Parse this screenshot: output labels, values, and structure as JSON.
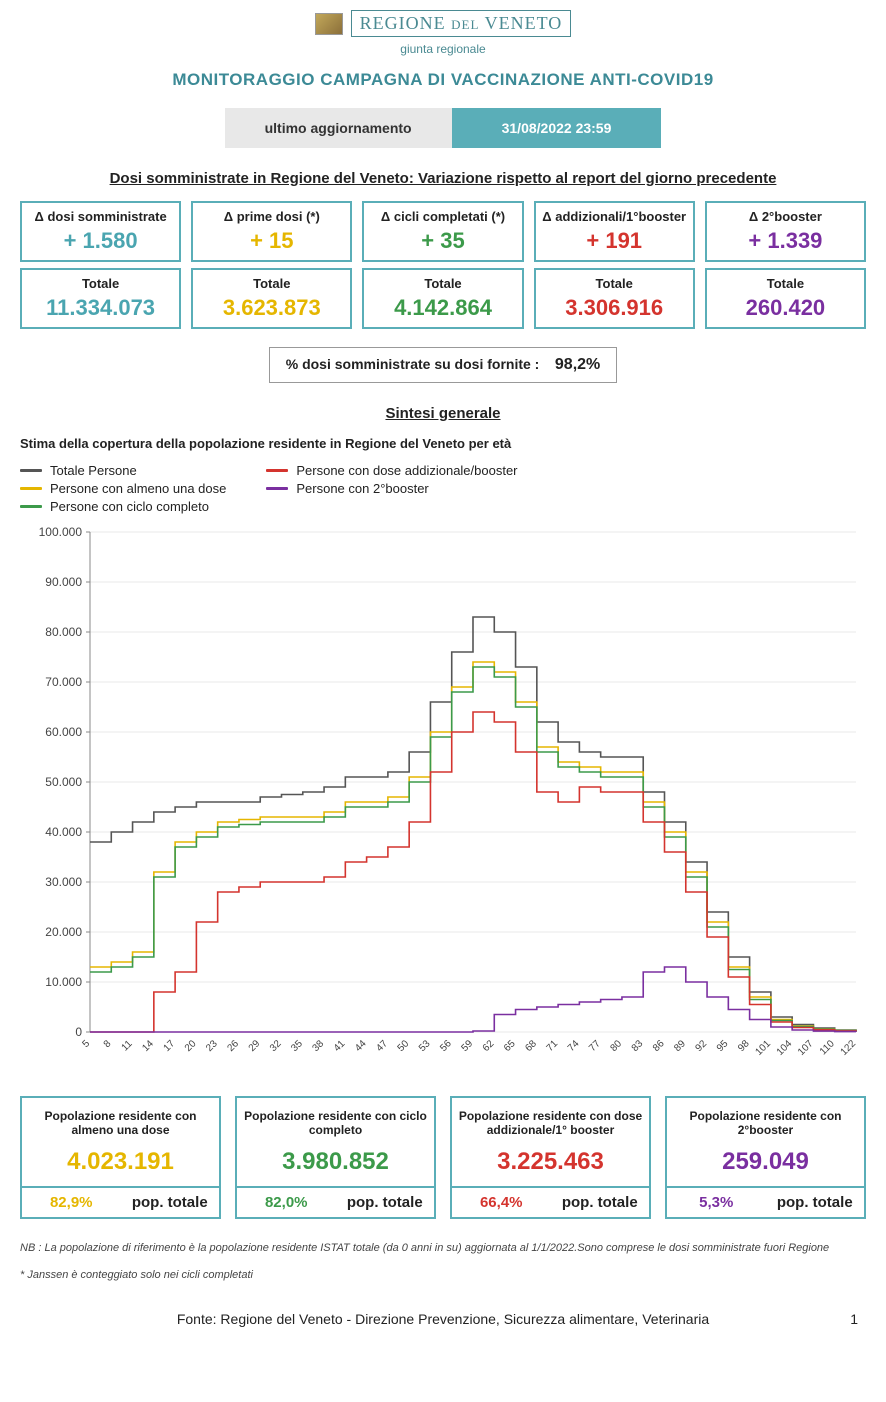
{
  "header": {
    "region_line1": "REGIONE",
    "region_line2": "DEL",
    "region_line3": "VENETO",
    "subline": "giunta regionale",
    "title": "MONITORAGGIO CAMPAGNA DI VACCINAZIONE ANTI-COVID19",
    "update_label": "ultimo aggiornamento",
    "update_value": "31/08/2022 23:59"
  },
  "section1": {
    "heading": "Dosi somministrate in Regione del Veneto: Variazione rispetto al report del giorno precedente",
    "delta_cards": [
      {
        "label": "Δ dosi somministrate",
        "value": "+ 1.580",
        "color": "#4aa5b0"
      },
      {
        "label": "Δ prime dosi (*)",
        "value": "+ 15",
        "color": "#e5b600"
      },
      {
        "label": "Δ cicli completati (*)",
        "value": "+ 35",
        "color": "#3c9a4a"
      },
      {
        "label": "Δ addizionali/1°booster",
        "value": "+ 191",
        "color": "#d4342e"
      },
      {
        "label": "Δ 2°booster",
        "value": "+ 1.339",
        "color": "#7a2fa0"
      }
    ],
    "total_cards": [
      {
        "label": "Totale",
        "value": "11.334.073",
        "color": "#4aa5b0"
      },
      {
        "label": "Totale",
        "value": "3.623.873",
        "color": "#e5b600"
      },
      {
        "label": "Totale",
        "value": "4.142.864",
        "color": "#3c9a4a"
      },
      {
        "label": "Totale",
        "value": "3.306.916",
        "color": "#d4342e"
      },
      {
        "label": "Totale",
        "value": "260.420",
        "color": "#7a2fa0"
      }
    ],
    "pct_label": "% dosi somministrate su dosi fornite :",
    "pct_value": "98,2%"
  },
  "section2": {
    "heading": "Sintesi generale",
    "subtitle": "Stima della copertura della popolazione residente in Regione del Veneto per età",
    "legend": [
      {
        "label": "Totale Persone",
        "color": "#555555"
      },
      {
        "label": "Persone con almeno una dose",
        "color": "#e5b600"
      },
      {
        "label": "Persone con ciclo completo",
        "color": "#3c9a4a"
      },
      {
        "label": "Persone con dose addizionale/booster",
        "color": "#d4342e"
      },
      {
        "label": "Persone con 2°booster",
        "color": "#7a2fa0"
      }
    ]
  },
  "chart": {
    "type": "step-line",
    "background_color": "#ffffff",
    "grid_color": "#e8e8e8",
    "ylim": [
      0,
      100000
    ],
    "ytick_step": 10000,
    "yticks_labels": [
      "0",
      "10.000",
      "20.000",
      "30.000",
      "40.000",
      "50.000",
      "60.000",
      "70.000",
      "80.000",
      "90.000",
      "100.000"
    ],
    "x_categories": [
      "5",
      "8",
      "11",
      "14",
      "17",
      "20",
      "23",
      "26",
      "29",
      "32",
      "35",
      "38",
      "41",
      "44",
      "47",
      "50",
      "53",
      "56",
      "59",
      "62",
      "65",
      "68",
      "71",
      "74",
      "77",
      "80",
      "83",
      "86",
      "89",
      "92",
      "95",
      "98",
      "101",
      "104",
      "107",
      "110",
      "122"
    ],
    "line_width": 1.6,
    "series": [
      {
        "name": "Totale Persone",
        "color": "#555555",
        "values": [
          38000,
          40000,
          42000,
          44000,
          45000,
          46000,
          46000,
          46000,
          47000,
          47500,
          48000,
          49000,
          51000,
          51000,
          52000,
          56000,
          66000,
          76000,
          83000,
          80000,
          73000,
          62000,
          58000,
          56000,
          55000,
          55000,
          48000,
          42000,
          34000,
          24000,
          15000,
          8000,
          3000,
          1500,
          800,
          400,
          100
        ]
      },
      {
        "name": "Persone con almeno una dose",
        "color": "#e5b600",
        "values": [
          13000,
          14000,
          16000,
          32000,
          38000,
          40000,
          42000,
          42500,
          43000,
          43000,
          43000,
          44000,
          46000,
          46000,
          47000,
          51000,
          60000,
          69000,
          74000,
          72000,
          66000,
          57000,
          54000,
          53000,
          52000,
          52000,
          46000,
          40000,
          32000,
          22000,
          13000,
          7000,
          2500,
          1200,
          600,
          300,
          80
        ]
      },
      {
        "name": "Persone con ciclo completo",
        "color": "#3c9a4a",
        "values": [
          12000,
          13000,
          15000,
          31000,
          37000,
          39000,
          41000,
          41500,
          42000,
          42000,
          42000,
          43000,
          45000,
          45000,
          46000,
          50000,
          59000,
          68000,
          73000,
          71000,
          65000,
          56000,
          53000,
          52000,
          51000,
          51000,
          45000,
          39000,
          31000,
          21000,
          12500,
          6500,
          2300,
          1100,
          550,
          280,
          70
        ]
      },
      {
        "name": "Persone con dose addizionale/booster",
        "color": "#d4342e",
        "values": [
          0,
          0,
          0,
          8000,
          12000,
          22000,
          28000,
          29000,
          30000,
          30000,
          30000,
          31000,
          34000,
          35000,
          37000,
          42000,
          52000,
          60000,
          64000,
          62000,
          56000,
          48000,
          46000,
          49000,
          48000,
          48000,
          42000,
          36000,
          28000,
          19000,
          11000,
          5500,
          2000,
          900,
          450,
          220,
          50
        ]
      },
      {
        "name": "Persone con 2°booster",
        "color": "#7a2fa0",
        "values": [
          0,
          0,
          0,
          0,
          0,
          0,
          0,
          0,
          0,
          0,
          0,
          0,
          0,
          0,
          0,
          0,
          0,
          0,
          200,
          3500,
          4500,
          5000,
          5500,
          6000,
          6500,
          7000,
          12000,
          13000,
          10000,
          7000,
          4500,
          2500,
          1000,
          400,
          180,
          80,
          20
        ]
      }
    ]
  },
  "bottom_cards": [
    {
      "title": "Popolazione residente con almeno una dose",
      "value": "4.023.191",
      "pct": "82,9%",
      "pct_label": "pop. totale",
      "color": "#e5b600"
    },
    {
      "title": "Popolazione residente con ciclo completo",
      "value": "3.980.852",
      "pct": "82,0%",
      "pct_label": "pop. totale",
      "color": "#3c9a4a"
    },
    {
      "title": "Popolazione residente con dose addizionale/1° booster",
      "value": "3.225.463",
      "pct": "66,4%",
      "pct_label": "pop. totale",
      "color": "#d4342e"
    },
    {
      "title": "Popolazione residente con 2°booster",
      "value": "259.049",
      "pct": "5,3%",
      "pct_label": "pop. totale",
      "color": "#7a2fa0"
    }
  ],
  "footnotes": {
    "note1": "NB : La popolazione di riferimento è la popolazione residente ISTAT totale (da 0 anni in su) aggiornata  al 1/1/2022.Sono comprese le dosi somministrate fuori Regione",
    "note2": "* Janssen è conteggiato solo nei cicli completati",
    "footer": "Fonte: Regione del Veneto - Direzione Prevenzione, Sicurezza alimentare, Veterinaria",
    "page": "1"
  }
}
